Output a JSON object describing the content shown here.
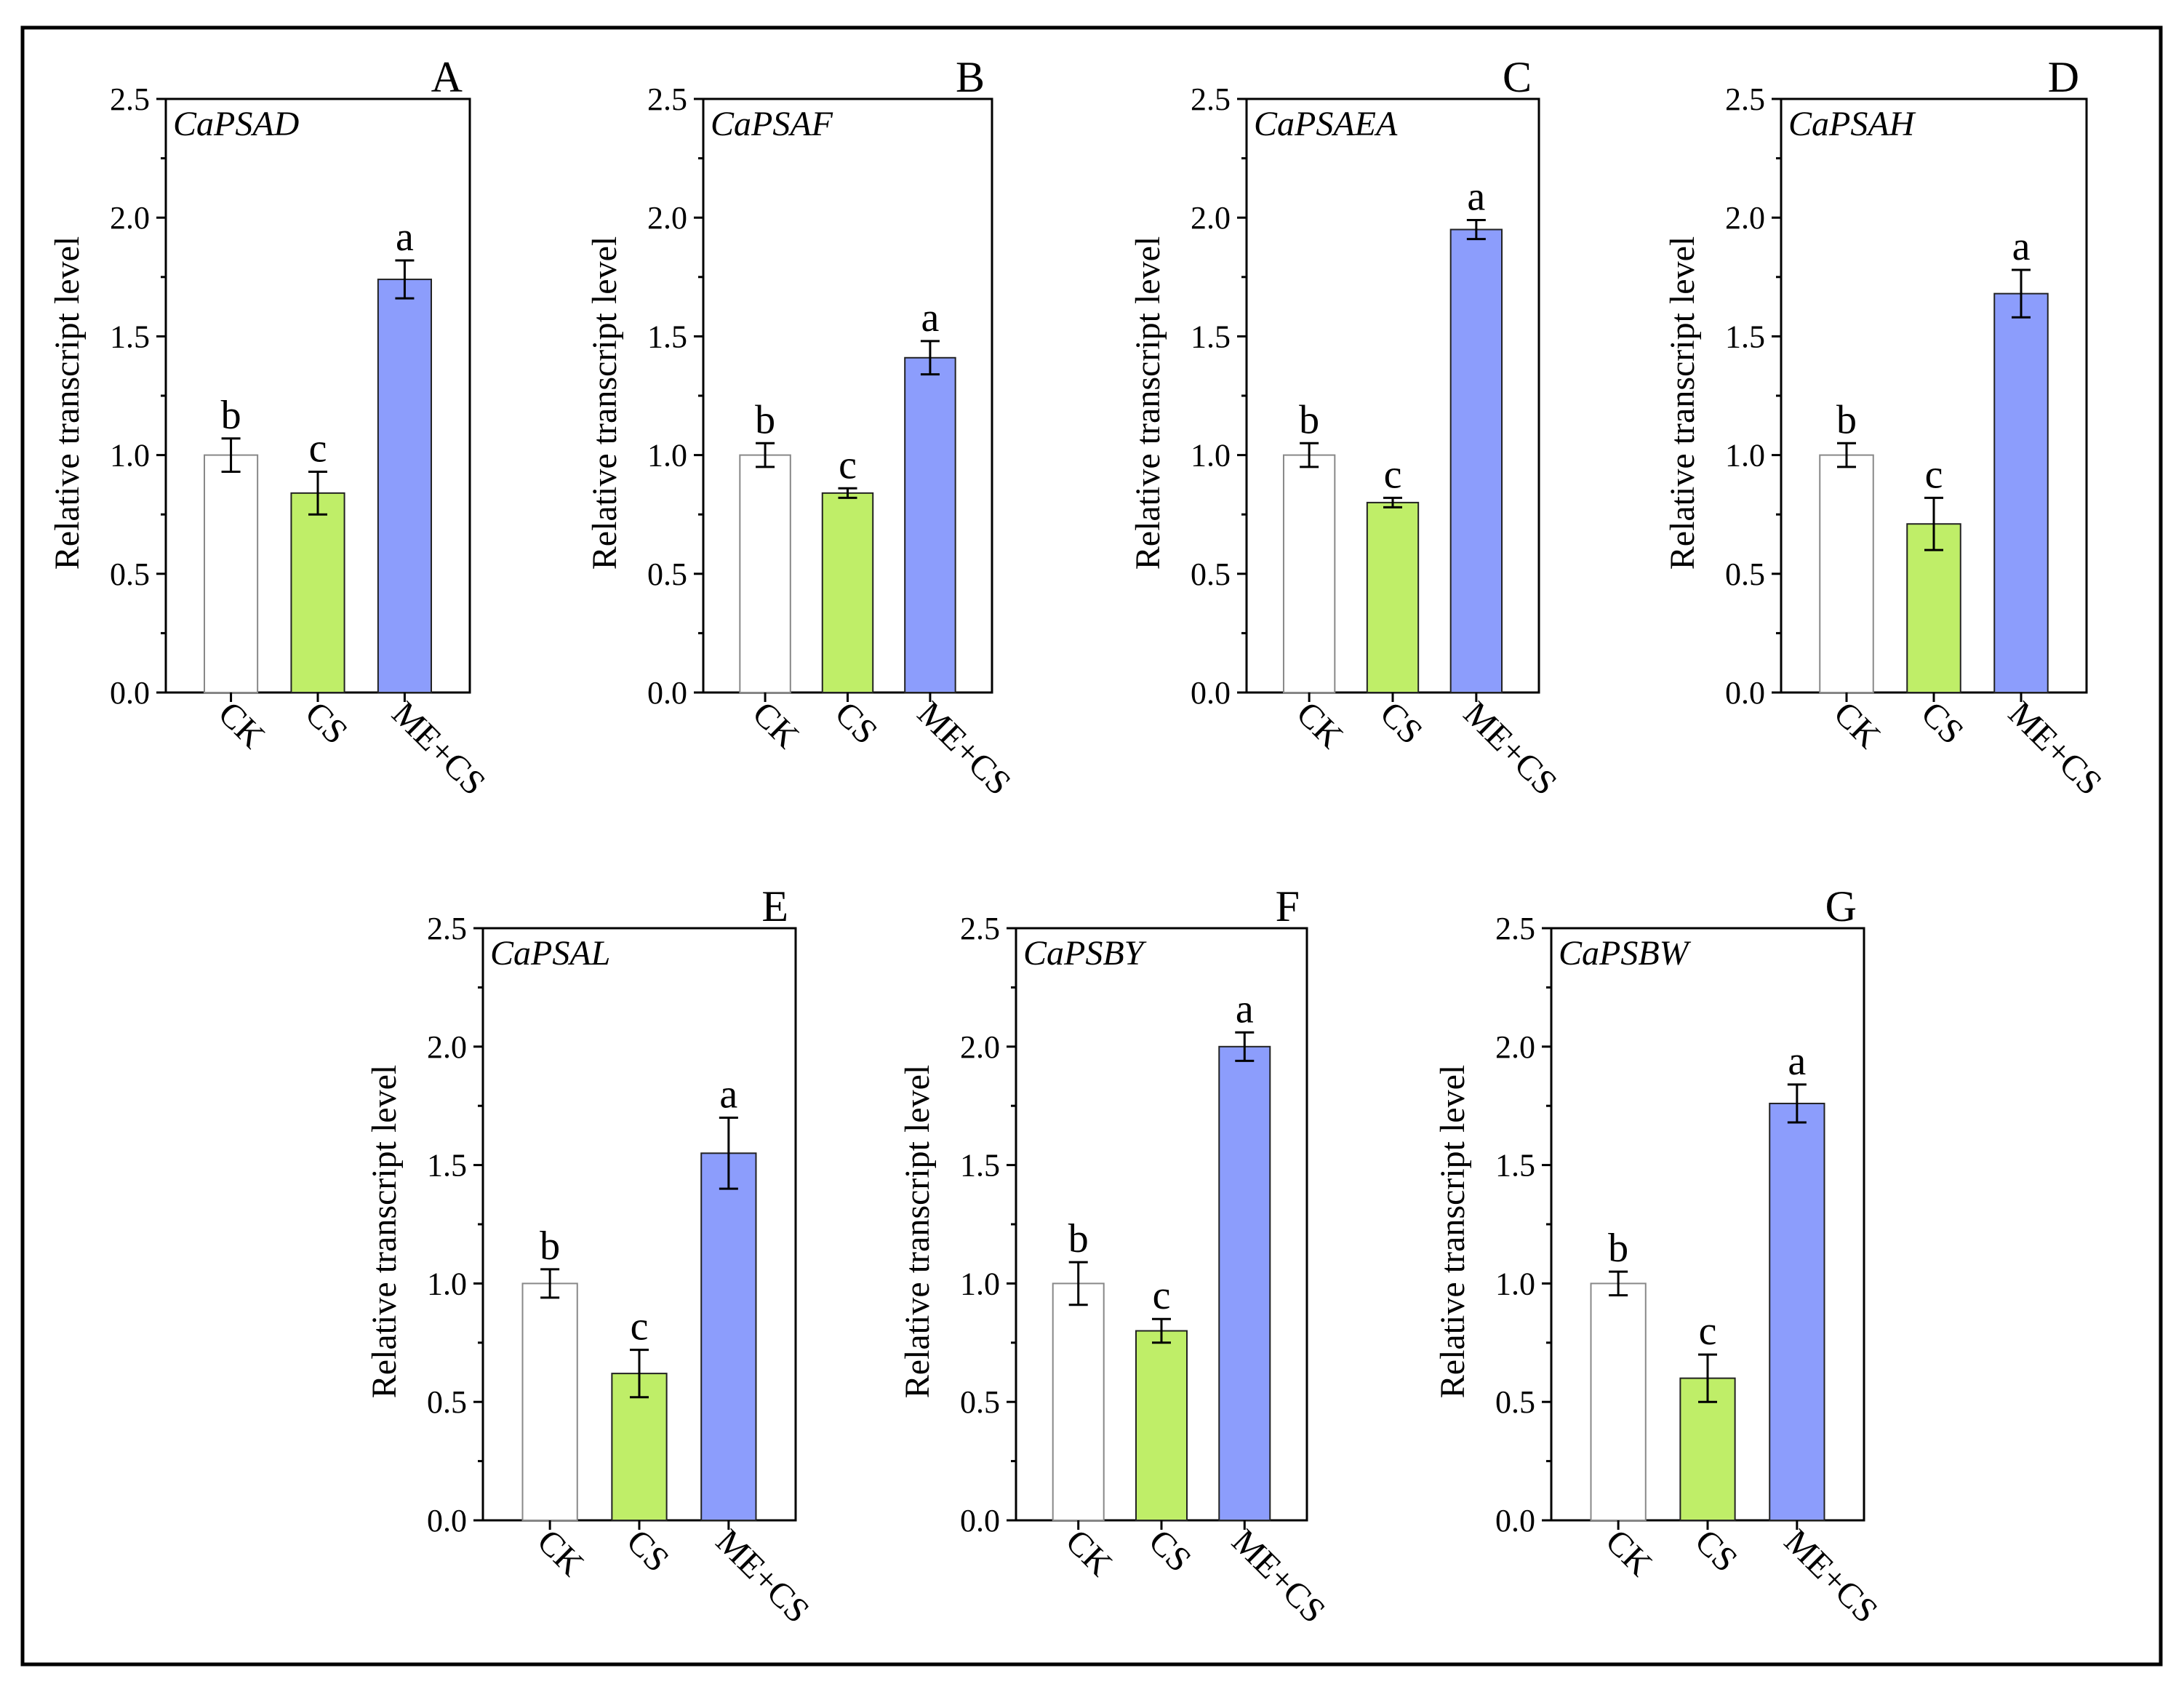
{
  "colors": {
    "CK": "#ffffff",
    "CS": "#bfee68",
    "ME+CS": "#8c9dfc",
    "axis": "#000000",
    "frame": "#000000"
  },
  "chart_data": [
    {
      "type": "bar",
      "panel_label": "A",
      "gene": "CaPSAD",
      "ylabel": "Relative transcript level",
      "ylim": [
        0,
        2.5
      ],
      "yticks": [
        "0.0",
        "0.5",
        "1.0",
        "1.5",
        "2.0",
        "2.5"
      ],
      "categories": [
        "CK",
        "CS",
        "ME+CS"
      ],
      "values": [
        1.0,
        0.84,
        1.74
      ],
      "errors": [
        0.07,
        0.09,
        0.08
      ],
      "significance": [
        "b",
        "c",
        "a"
      ]
    },
    {
      "type": "bar",
      "panel_label": "B",
      "gene": "CaPSAF",
      "ylabel": "Relative transcript level",
      "ylim": [
        0,
        2.5
      ],
      "yticks": [
        "0.0",
        "0.5",
        "1.0",
        "1.5",
        "2.0",
        "2.5"
      ],
      "categories": [
        "CK",
        "CS",
        "ME+CS"
      ],
      "values": [
        1.0,
        0.84,
        1.41
      ],
      "errors": [
        0.05,
        0.02,
        0.07
      ],
      "significance": [
        "b",
        "c",
        "a"
      ]
    },
    {
      "type": "bar",
      "panel_label": "C",
      "gene": "CaPSAEA",
      "ylabel": "Relative transcript level",
      "ylim": [
        0,
        2.5
      ],
      "yticks": [
        "0.0",
        "0.5",
        "1.0",
        "1.5",
        "2.0",
        "2.5"
      ],
      "categories": [
        "CK",
        "CS",
        "ME+CS"
      ],
      "values": [
        1.0,
        0.8,
        1.95
      ],
      "errors": [
        0.05,
        0.02,
        0.04
      ],
      "significance": [
        "b",
        "c",
        "a"
      ]
    },
    {
      "type": "bar",
      "panel_label": "D",
      "gene": "CaPSAH",
      "ylabel": "Relative transcript level",
      "ylim": [
        0,
        2.5
      ],
      "yticks": [
        "0.0",
        "0.5",
        "1.0",
        "1.5",
        "2.0",
        "2.5"
      ],
      "categories": [
        "CK",
        "CS",
        "ME+CS"
      ],
      "values": [
        1.0,
        0.71,
        1.68
      ],
      "errors": [
        0.05,
        0.11,
        0.1
      ],
      "significance": [
        "b",
        "c",
        "a"
      ]
    },
    {
      "type": "bar",
      "panel_label": "E",
      "gene": "CaPSAL",
      "ylabel": "Relative transcript level",
      "ylim": [
        0,
        2.5
      ],
      "yticks": [
        "0.0",
        "0.5",
        "1.0",
        "1.5",
        "2.0",
        "2.5"
      ],
      "categories": [
        "CK",
        "CS",
        "ME+CS"
      ],
      "values": [
        1.0,
        0.62,
        1.55
      ],
      "errors": [
        0.06,
        0.1,
        0.15
      ],
      "significance": [
        "b",
        "c",
        "a"
      ]
    },
    {
      "type": "bar",
      "panel_label": "F",
      "gene": "CaPSBY",
      "ylabel": "Relative transcript level",
      "ylim": [
        0,
        2.5
      ],
      "yticks": [
        "0.0",
        "0.5",
        "1.0",
        "1.5",
        "2.0",
        "2.5"
      ],
      "categories": [
        "CK",
        "CS",
        "ME+CS"
      ],
      "values": [
        1.0,
        0.8,
        2.0
      ],
      "errors": [
        0.09,
        0.05,
        0.06
      ],
      "significance": [
        "b",
        "c",
        "a"
      ]
    },
    {
      "type": "bar",
      "panel_label": "G",
      "gene": "CaPSBW",
      "ylabel": "Relative transcript level",
      "ylim": [
        0,
        2.5
      ],
      "yticks": [
        "0.0",
        "0.5",
        "1.0",
        "1.5",
        "2.0",
        "2.5"
      ],
      "categories": [
        "CK",
        "CS",
        "ME+CS"
      ],
      "values": [
        1.0,
        0.6,
        1.76
      ],
      "errors": [
        0.05,
        0.1,
        0.08
      ],
      "significance": [
        "b",
        "c",
        "a"
      ]
    }
  ]
}
